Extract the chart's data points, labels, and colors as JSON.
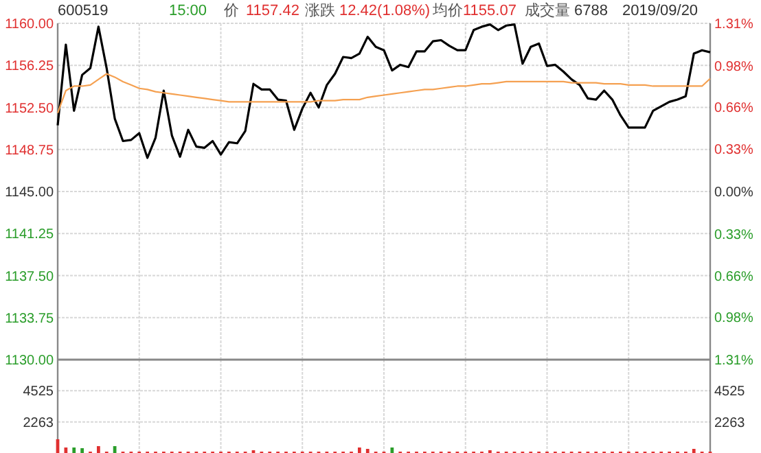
{
  "chart_data": [
    {
      "type": "line",
      "annotations": [
        "600519",
        "15:00",
        "价",
        "1157.42",
        "涨跌",
        "12.42(1.08%)",
        "均价",
        "1155.07",
        "成交量",
        "6788",
        "2019/09/20"
      ],
      "categories": [
        null,
        null,
        null,
        null,
        null,
        null,
        null,
        null,
        null,
        null,
        null,
        null,
        null,
        null,
        null,
        null,
        null,
        null,
        null,
        null,
        null,
        null,
        null,
        null,
        null,
        null,
        null,
        null,
        null,
        null,
        null,
        null,
        null,
        null,
        null,
        null,
        null,
        null,
        null,
        null,
        null,
        null,
        null,
        null,
        null,
        null,
        null,
        null,
        null,
        null,
        null,
        null,
        null,
        null,
        null,
        null,
        null,
        null,
        null,
        null,
        null,
        null,
        null,
        null,
        null,
        null,
        null,
        null,
        null,
        null,
        null,
        null,
        null,
        null,
        null,
        null,
        null,
        null,
        null,
        null,
        null
      ],
      "ylim": [
        1130,
        1160
      ],
      "yticks": [
        {
          "value": 1160,
          "label": "1160.00"
        },
        {
          "value": 1156.25,
          "label": "1156.25"
        },
        {
          "value": 1152.5,
          "label": "1152.50"
        },
        {
          "value": 1148.75,
          "label": "1148.75"
        },
        {
          "value": 1145,
          "label": "1145.00"
        },
        {
          "value": 1141.25,
          "label": "1141.25"
        },
        {
          "value": 1137.5,
          "label": "1137.50"
        },
        {
          "value": 1133.75,
          "label": "1133.75"
        },
        {
          "value": 1130,
          "label": "1130.00"
        }
      ],
      "y2lim": [
        -1.31,
        1.31
      ],
      "y2ticks": [
        {
          "value": 1.31,
          "label": "1.31%"
        },
        {
          "value": 0.98,
          "label": "0.98%"
        },
        {
          "value": 0.66,
          "label": "0.66%"
        },
        {
          "value": 0.33,
          "label": "0.33%"
        },
        {
          "value": 0,
          "label": "0.00%"
        },
        {
          "value": -0.33,
          "label": "0.33%"
        },
        {
          "value": -0.66,
          "label": "0.66%"
        },
        {
          "value": -0.98,
          "label": "0.98%"
        },
        {
          "value": -1.31,
          "label": "1.31%"
        }
      ],
      "grid": true,
      "series": [
        {
          "color": "#000000",
          "values": [
            1150.9,
            1158.1,
            1152.2,
            1155.4,
            1156.0,
            1159.7,
            1156.0,
            1151.5,
            1149.5,
            1149.6,
            1150.2,
            1148.0,
            1149.8,
            1154.0,
            1150.0,
            1148.1,
            1150.5,
            1149.0,
            1148.9,
            1149.5,
            1148.3,
            1149.4,
            1149.3,
            1150.4,
            1154.6,
            1154.1,
            1154.1,
            1153.2,
            1153.1,
            1150.5,
            1152.4,
            1153.8,
            1152.5,
            1154.5,
            1155.5,
            1157.0,
            1156.9,
            1157.3,
            1158.8,
            1157.9,
            1157.6,
            1155.8,
            1156.3,
            1156.1,
            1157.5,
            1157.5,
            1158.4,
            1158.5,
            1158.0,
            1157.6,
            1157.6,
            1159.4,
            1159.7,
            1159.9,
            1159.4,
            1159.8,
            1159.9,
            1156.4,
            1157.9,
            1158.2,
            1156.2,
            1156.3,
            1155.7,
            1155.0,
            1154.5,
            1153.3,
            1153.2,
            1154.0,
            1153.2,
            1151.8,
            1150.7,
            1150.7,
            1150.7,
            1152.2,
            1152.6,
            1153.0,
            1153.2,
            1153.5,
            1157.3,
            1157.6,
            1157.42
          ]
        },
        {
          "color": "#f5a050",
          "values": [
            1152.0,
            1154.0,
            1154.4,
            1154.4,
            1154.5,
            1155.0,
            1155.5,
            1155.2,
            1154.8,
            1154.5,
            1154.2,
            1154.1,
            1153.9,
            1153.8,
            1153.7,
            1153.6,
            1153.5,
            1153.4,
            1153.3,
            1153.2,
            1153.1,
            1153.0,
            1153.0,
            1153.0,
            1153.0,
            1153.0,
            1153.0,
            1153.0,
            1153.0,
            1153.0,
            1153.0,
            1153.0,
            1153.1,
            1153.1,
            1153.1,
            1153.2,
            1153.2,
            1153.2,
            1153.4,
            1153.5,
            1153.6,
            1153.7,
            1153.8,
            1153.9,
            1154.0,
            1154.1,
            1154.1,
            1154.2,
            1154.3,
            1154.4,
            1154.4,
            1154.5,
            1154.6,
            1154.6,
            1154.7,
            1154.8,
            1154.8,
            1154.8,
            1154.8,
            1154.8,
            1154.8,
            1154.8,
            1154.8,
            1154.7,
            1154.7,
            1154.7,
            1154.7,
            1154.6,
            1154.6,
            1154.6,
            1154.5,
            1154.5,
            1154.5,
            1154.4,
            1154.4,
            1154.4,
            1154.4,
            1154.4,
            1154.4,
            1154.4,
            1155.07
          ]
        }
      ]
    },
    {
      "type": "bar",
      "categories": [
        null,
        null,
        null,
        null,
        null,
        null,
        null,
        null,
        null,
        null,
        null,
        null,
        null,
        null,
        null,
        null,
        null,
        null,
        null,
        null,
        null,
        null,
        null,
        null,
        null,
        null,
        null,
        null,
        null,
        null,
        null,
        null,
        null,
        null,
        null,
        null,
        null,
        null,
        null,
        null,
        null,
        null,
        null,
        null,
        null,
        null,
        null,
        null,
        null,
        null,
        null,
        null,
        null,
        null,
        null,
        null,
        null,
        null,
        null,
        null,
        null,
        null,
        null,
        null,
        null,
        null,
        null,
        null,
        null,
        null,
        null,
        null,
        null,
        null,
        null,
        null,
        null,
        null,
        null,
        null,
        null
      ],
      "ylim": [
        0,
        6788
      ],
      "yticks": [
        2263,
        4525
      ],
      "y2lim": [
        0,
        6788
      ],
      "y2ticks": [
        2263,
        4525
      ],
      "grid": true,
      "values": [
        1000,
        400,
        400,
        350,
        100,
        500,
        100,
        500,
        100,
        100,
        100,
        100,
        100,
        100,
        100,
        100,
        100,
        100,
        100,
        100,
        100,
        100,
        100,
        100,
        200,
        100,
        100,
        100,
        100,
        100,
        100,
        100,
        100,
        100,
        100,
        100,
        100,
        400,
        300,
        100,
        100,
        400,
        100,
        100,
        100,
        100,
        100,
        100,
        100,
        100,
        100,
        100,
        100,
        200,
        100,
        100,
        100,
        100,
        100,
        100,
        100,
        100,
        100,
        100,
        100,
        100,
        100,
        100,
        100,
        100,
        100,
        100,
        100,
        100,
        100,
        100,
        100,
        100,
        300,
        100,
        100
      ],
      "colors": [
        "#e03030",
        "#e03030",
        "#2a9d2a",
        "#2a9d2a",
        "#e03030",
        "#e03030",
        "#e03030",
        "#2a9d2a",
        "#e03030",
        "#e03030",
        "#e03030",
        "#e03030",
        "#e03030",
        "#e03030",
        "#e03030",
        "#e03030",
        "#e03030",
        "#e03030",
        "#e03030",
        "#e03030",
        "#e03030",
        "#e03030",
        "#e03030",
        "#e03030",
        "#e03030",
        "#e03030",
        "#e03030",
        "#e03030",
        "#e03030",
        "#e03030",
        "#e03030",
        "#e03030",
        "#e03030",
        "#e03030",
        "#e03030",
        "#e03030",
        "#e03030",
        "#e03030",
        "#e03030",
        "#e03030",
        "#e03030",
        "#2a9d2a",
        "#e03030",
        "#e03030",
        "#e03030",
        "#e03030",
        "#e03030",
        "#e03030",
        "#e03030",
        "#e03030",
        "#e03030",
        "#e03030",
        "#e03030",
        "#e03030",
        "#e03030",
        "#e03030",
        "#e03030",
        "#e03030",
        "#e03030",
        "#e03030",
        "#e03030",
        "#e03030",
        "#e03030",
        "#e03030",
        "#e03030",
        "#e03030",
        "#e03030",
        "#e03030",
        "#e03030",
        "#e03030",
        "#e03030",
        "#e03030",
        "#e03030",
        "#e03030",
        "#e03030",
        "#e03030",
        "#e03030",
        "#e03030",
        "#e03030",
        "#e03030",
        "#e03030"
      ]
    }
  ]
}
